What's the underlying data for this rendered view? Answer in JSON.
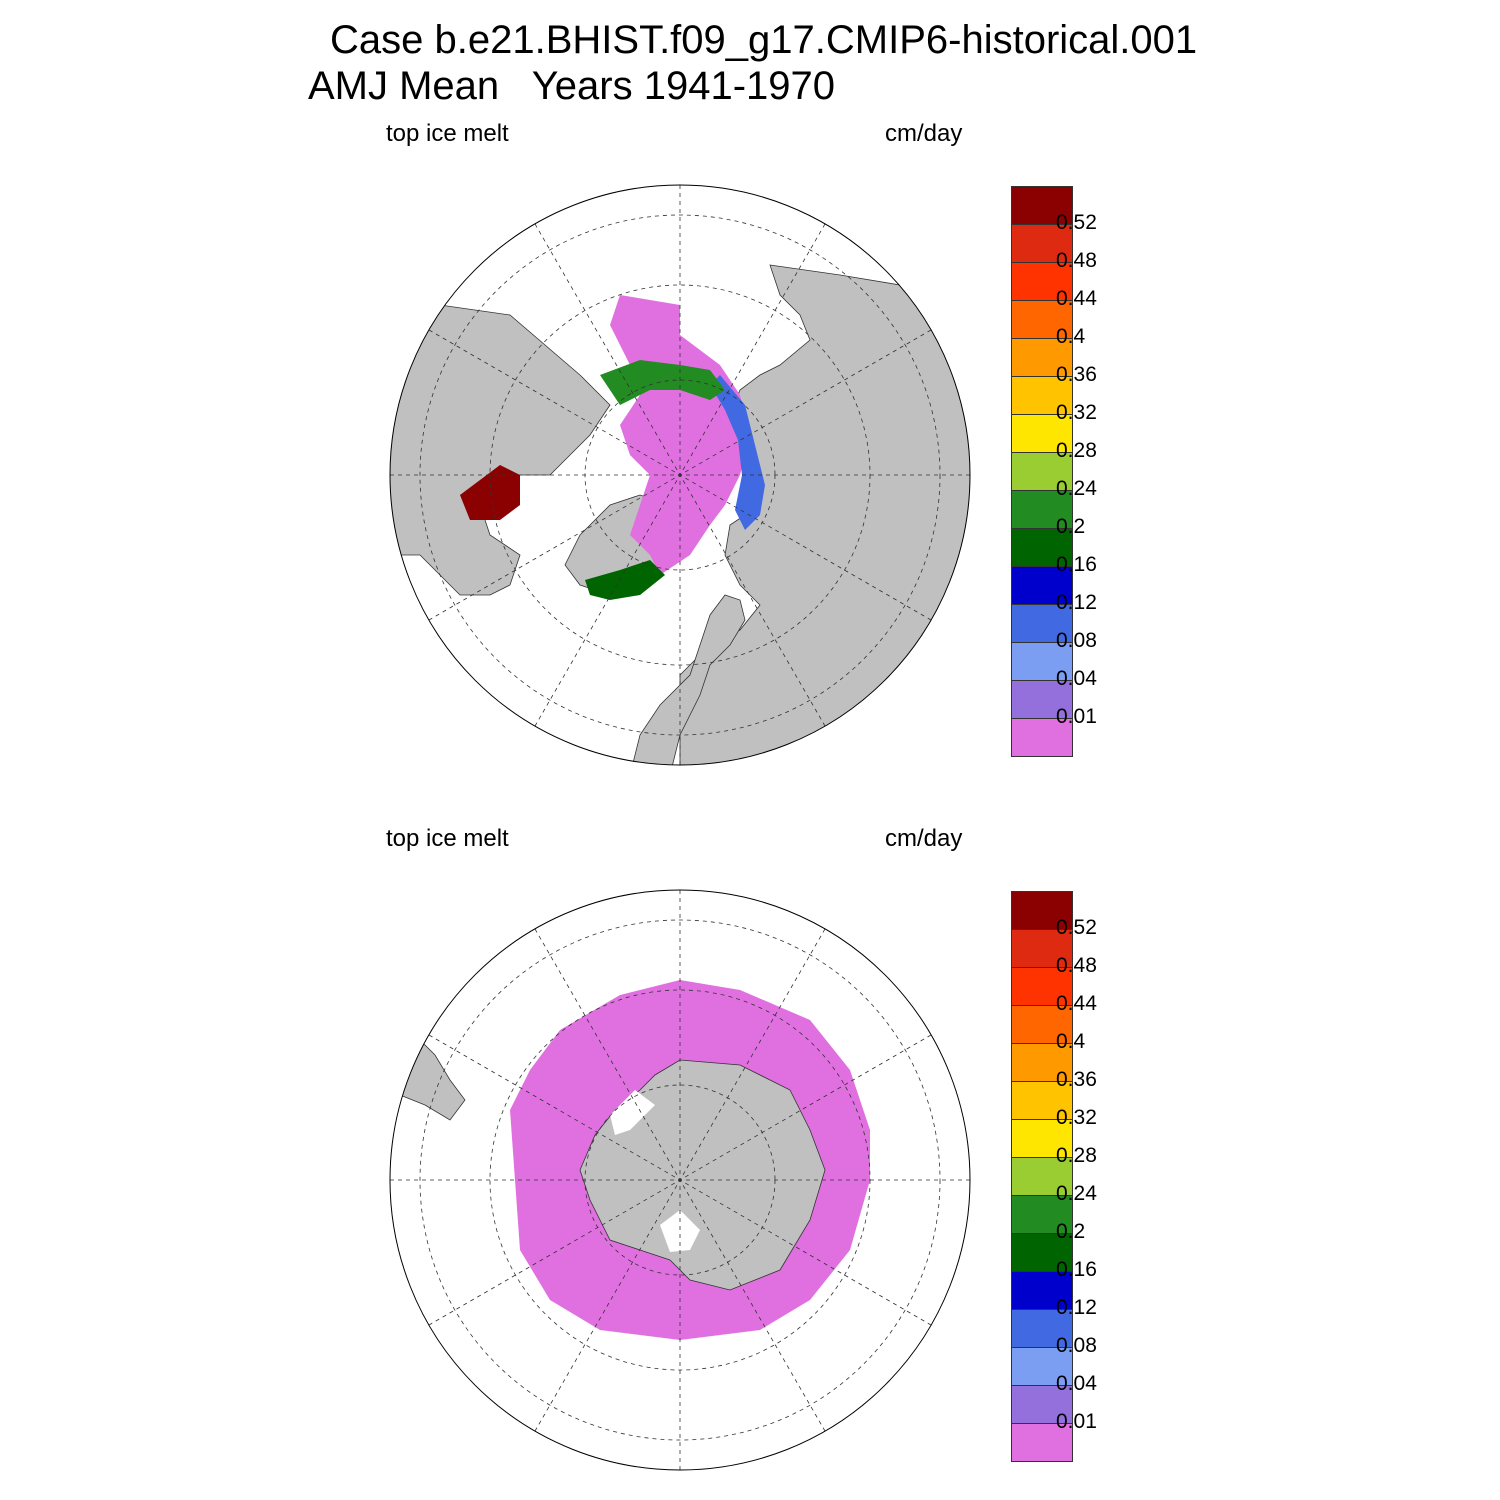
{
  "title": {
    "line1": "Case b.e21.BHIST.f09_g17.CMIP6-historical.001",
    "line2": "AMJ Mean   Years 1941-1970"
  },
  "panels": [
    {
      "hemisphere": "north",
      "field_label": "top ice melt",
      "units_label": "cm/day"
    },
    {
      "hemisphere": "south",
      "field_label": "top ice melt",
      "units_label": "cm/day"
    }
  ],
  "colorbar": {
    "levels": [
      "0.52",
      "0.48",
      "0.44",
      "0.4",
      "0.36",
      "0.32",
      "0.28",
      "0.24",
      "0.2",
      "0.16",
      "0.12",
      "0.08",
      "0.04",
      "0.01"
    ],
    "colors": [
      "#8b0000",
      "#dd2a10",
      "#ff3300",
      "#ff6600",
      "#ff9900",
      "#ffc300",
      "#ffe600",
      "#9acd32",
      "#228b22",
      "#006400",
      "#0000cd",
      "#4169e1",
      "#7b9df2",
      "#9370db",
      "#e070e0"
    ]
  },
  "land_color": "#c0c0c0",
  "ocean_color": "#ffffff"
}
